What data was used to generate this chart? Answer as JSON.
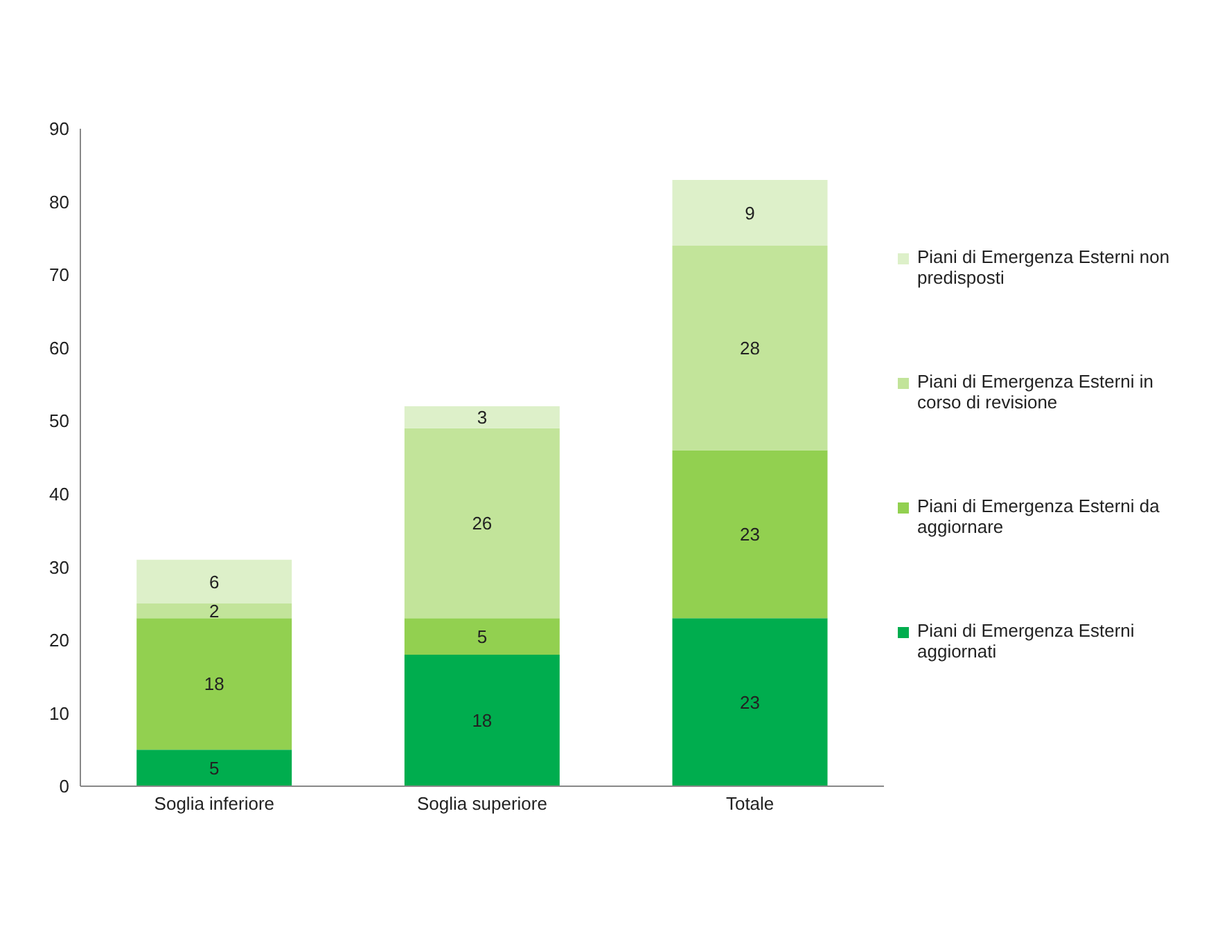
{
  "chart_data": {
    "type": "bar",
    "stacked": true,
    "categories": [
      "Soglia inferiore",
      "Soglia superiore",
      "Totale"
    ],
    "series": [
      {
        "name": "Piani di Emergenza Esterni aggiornati",
        "color": "#00ad4e",
        "values": [
          5,
          18,
          23
        ]
      },
      {
        "name": "Piani di Emergenza Esterni da aggiornare",
        "color": "#92d050",
        "values": [
          18,
          5,
          23
        ]
      },
      {
        "name": "Piani di Emergenza Esterni in corso di revisione",
        "color": "#c2e49a",
        "values": [
          2,
          26,
          28
        ]
      },
      {
        "name": "Piani di Emergenza Esterni non predisposti",
        "color": "#ddf0c9",
        "values": [
          6,
          3,
          9
        ]
      }
    ],
    "ylim": [
      0,
      90
    ],
    "yticks": [
      0,
      10,
      20,
      30,
      40,
      50,
      60,
      70,
      80,
      90
    ],
    "grid": false,
    "legend": "right",
    "data_labels": true
  }
}
